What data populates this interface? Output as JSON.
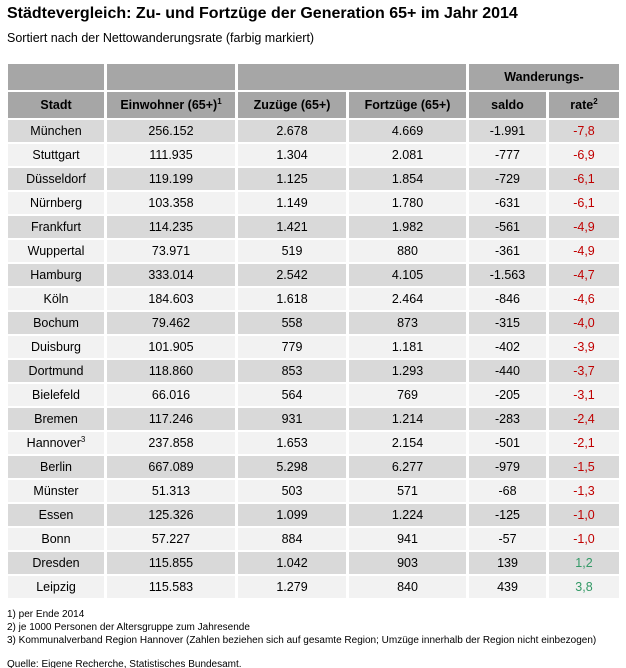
{
  "title": "Städtevergleich: Zu- und Fortzüge der Generation 65+ im Jahr 2014",
  "subtitle": "Sortiert nach der Nettowanderungsrate (farbig markiert)",
  "chart_data": {
    "type": "table",
    "group_header": "Wanderungs-",
    "columns": [
      {
        "label": "Stadt",
        "sup": ""
      },
      {
        "label": "Einwohner (65+)",
        "sup": "1"
      },
      {
        "label": "Zuzüge (65+)",
        "sup": ""
      },
      {
        "label": "Fortzüge (65+)",
        "sup": ""
      },
      {
        "label": "saldo",
        "sup": ""
      },
      {
        "label": "rate",
        "sup": "2"
      }
    ],
    "rows": [
      {
        "stadt": "München",
        "stadt_sup": "",
        "einwohner": "256.152",
        "zuzuege": "2.678",
        "fortzuege": "4.669",
        "saldo": "-1.991",
        "rate": "-7,8"
      },
      {
        "stadt": "Stuttgart",
        "stadt_sup": "",
        "einwohner": "111.935",
        "zuzuege": "1.304",
        "fortzuege": "2.081",
        "saldo": "-777",
        "rate": "-6,9"
      },
      {
        "stadt": "Düsseldorf",
        "stadt_sup": "",
        "einwohner": "119.199",
        "zuzuege": "1.125",
        "fortzuege": "1.854",
        "saldo": "-729",
        "rate": "-6,1"
      },
      {
        "stadt": "Nürnberg",
        "stadt_sup": "",
        "einwohner": "103.358",
        "zuzuege": "1.149",
        "fortzuege": "1.780",
        "saldo": "-631",
        "rate": "-6,1"
      },
      {
        "stadt": "Frankfurt",
        "stadt_sup": "",
        "einwohner": "114.235",
        "zuzuege": "1.421",
        "fortzuege": "1.982",
        "saldo": "-561",
        "rate": "-4,9"
      },
      {
        "stadt": "Wuppertal",
        "stadt_sup": "",
        "einwohner": "73.971",
        "zuzuege": "519",
        "fortzuege": "880",
        "saldo": "-361",
        "rate": "-4,9"
      },
      {
        "stadt": "Hamburg",
        "stadt_sup": "",
        "einwohner": "333.014",
        "zuzuege": "2.542",
        "fortzuege": "4.105",
        "saldo": "-1.563",
        "rate": "-4,7"
      },
      {
        "stadt": "Köln",
        "stadt_sup": "",
        "einwohner": "184.603",
        "zuzuege": "1.618",
        "fortzuege": "2.464",
        "saldo": "-846",
        "rate": "-4,6"
      },
      {
        "stadt": "Bochum",
        "stadt_sup": "",
        "einwohner": "79.462",
        "zuzuege": "558",
        "fortzuege": "873",
        "saldo": "-315",
        "rate": "-4,0"
      },
      {
        "stadt": "Duisburg",
        "stadt_sup": "",
        "einwohner": "101.905",
        "zuzuege": "779",
        "fortzuege": "1.181",
        "saldo": "-402",
        "rate": "-3,9"
      },
      {
        "stadt": "Dortmund",
        "stadt_sup": "",
        "einwohner": "118.860",
        "zuzuege": "853",
        "fortzuege": "1.293",
        "saldo": "-440",
        "rate": "-3,7"
      },
      {
        "stadt": "Bielefeld",
        "stadt_sup": "",
        "einwohner": "66.016",
        "zuzuege": "564",
        "fortzuege": "769",
        "saldo": "-205",
        "rate": "-3,1"
      },
      {
        "stadt": "Bremen",
        "stadt_sup": "",
        "einwohner": "117.246",
        "zuzuege": "931",
        "fortzuege": "1.214",
        "saldo": "-283",
        "rate": "-2,4"
      },
      {
        "stadt": "Hannover",
        "stadt_sup": "3",
        "einwohner": "237.858",
        "zuzuege": "1.653",
        "fortzuege": "2.154",
        "saldo": "-501",
        "rate": "-2,1"
      },
      {
        "stadt": "Berlin",
        "stadt_sup": "",
        "einwohner": "667.089",
        "zuzuege": "5.298",
        "fortzuege": "6.277",
        "saldo": "-979",
        "rate": "-1,5"
      },
      {
        "stadt": "Münster",
        "stadt_sup": "",
        "einwohner": "51.313",
        "zuzuege": "503",
        "fortzuege": "571",
        "saldo": "-68",
        "rate": "-1,3"
      },
      {
        "stadt": "Essen",
        "stadt_sup": "",
        "einwohner": "125.326",
        "zuzuege": "1.099",
        "fortzuege": "1.224",
        "saldo": "-125",
        "rate": "-1,0"
      },
      {
        "stadt": "Bonn",
        "stadt_sup": "",
        "einwohner": "57.227",
        "zuzuege": "884",
        "fortzuege": "941",
        "saldo": "-57",
        "rate": "-1,0"
      },
      {
        "stadt": "Dresden",
        "stadt_sup": "",
        "einwohner": "115.855",
        "zuzuege": "1.042",
        "fortzuege": "903",
        "saldo": "139",
        "rate": "1,2"
      },
      {
        "stadt": "Leipzig",
        "stadt_sup": "",
        "einwohner": "115.583",
        "zuzuege": "1.279",
        "fortzuege": "840",
        "saldo": "439",
        "rate": "3,8"
      }
    ]
  },
  "footnotes": [
    "1) per Ende 2014",
    "2) je 1000 Personen der Altersgruppe zum Jahresende",
    "3) Kommunalverband Region Hannover (Zahlen beziehen sich auf gesamte Region; Umzüge innerhalb der Region nicht einbezogen)"
  ],
  "source": "Quelle: Eigene Recherche, Statistisches Bundesamt.",
  "colors": {
    "header_bg": "#a6a6a6",
    "row_dark": "#d9d9d9",
    "row_light": "#f2f2f2",
    "rate_negative": "#c00000",
    "rate_positive": "#339966"
  }
}
